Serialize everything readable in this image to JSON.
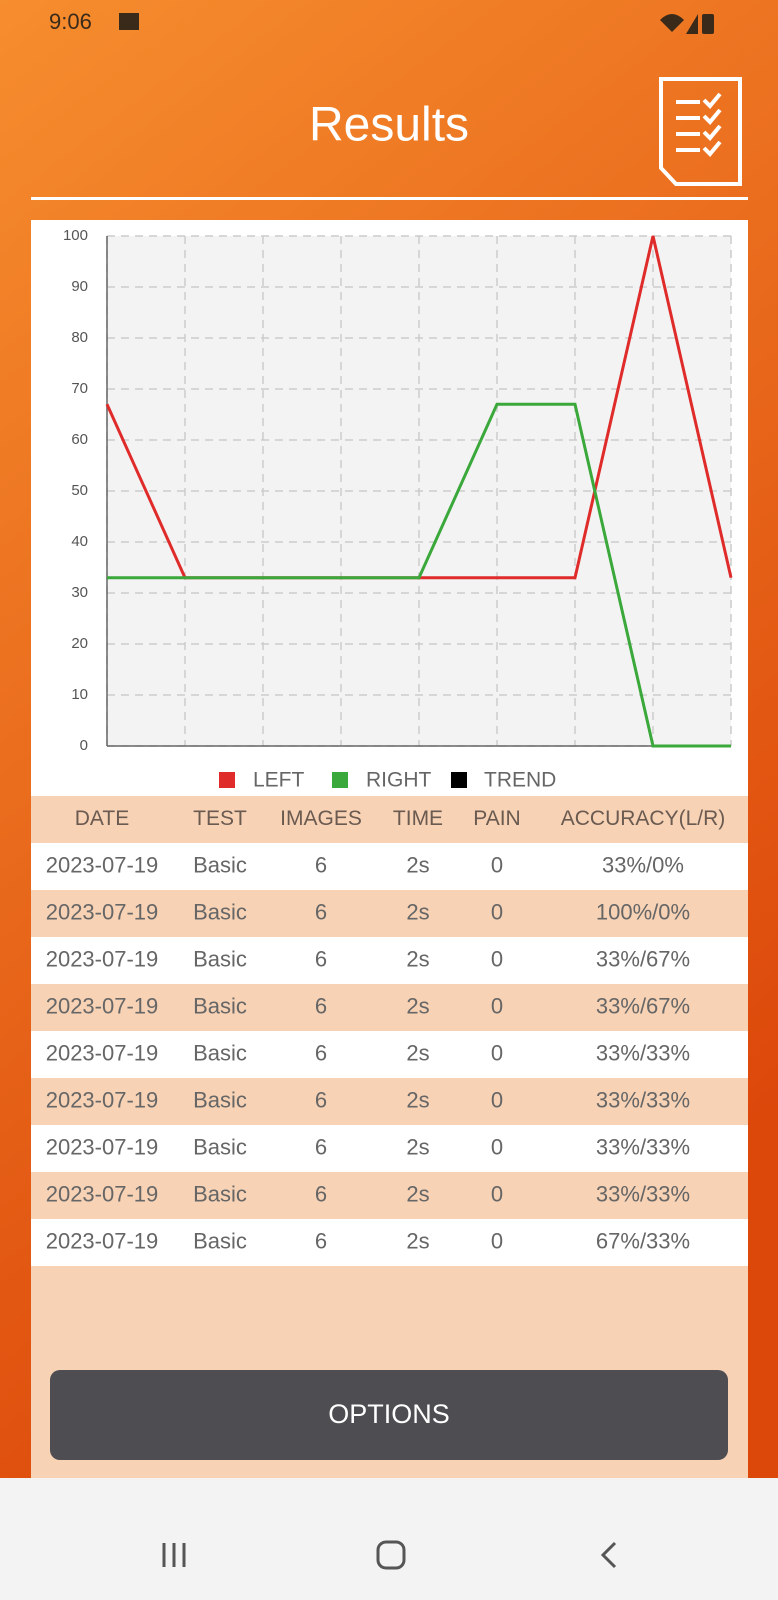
{
  "status_bar": {
    "time": "9:06"
  },
  "header": {
    "title": "Results"
  },
  "chart_data": {
    "type": "line",
    "categories": [
      null,
      null,
      null,
      null,
      null,
      null,
      null,
      null,
      null
    ],
    "series": [
      {
        "name": "LEFT",
        "color": "#e02b2b",
        "values": [
          67,
          33,
          33,
          33,
          33,
          33,
          33,
          100,
          33
        ]
      },
      {
        "name": "RIGHT",
        "color": "#3aa83a",
        "values": [
          33,
          33,
          33,
          33,
          33,
          67,
          67,
          0,
          0
        ]
      },
      {
        "name": "TREND",
        "color": "#000000",
        "values": [
          null,
          null,
          null,
          null,
          null,
          null,
          null,
          null,
          null
        ]
      }
    ],
    "ylim": [
      0,
      100
    ],
    "yticks": [
      0,
      10,
      20,
      30,
      40,
      50,
      60,
      70,
      80,
      90,
      100
    ],
    "grid": true,
    "legend": "bottom"
  },
  "table": {
    "columns": [
      "DATE",
      "TEST",
      "IMAGES",
      "TIME",
      "PAIN",
      "ACCURACY(L/R)"
    ],
    "rows": [
      [
        "2023-07-19",
        "Basic",
        "6",
        "2s",
        "0",
        "33%/0%"
      ],
      [
        "2023-07-19",
        "Basic",
        "6",
        "2s",
        "0",
        "100%/0%"
      ],
      [
        "2023-07-19",
        "Basic",
        "6",
        "2s",
        "0",
        "33%/67%"
      ],
      [
        "2023-07-19",
        "Basic",
        "6",
        "2s",
        "0",
        "33%/67%"
      ],
      [
        "2023-07-19",
        "Basic",
        "6",
        "2s",
        "0",
        "33%/33%"
      ],
      [
        "2023-07-19",
        "Basic",
        "6",
        "2s",
        "0",
        "33%/33%"
      ],
      [
        "2023-07-19",
        "Basic",
        "6",
        "2s",
        "0",
        "33%/33%"
      ],
      [
        "2023-07-19",
        "Basic",
        "6",
        "2s",
        "0",
        "33%/33%"
      ],
      [
        "2023-07-19",
        "Basic",
        "6",
        "2s",
        "0",
        "67%/33%"
      ]
    ]
  },
  "button": {
    "label": "OPTIONS"
  }
}
